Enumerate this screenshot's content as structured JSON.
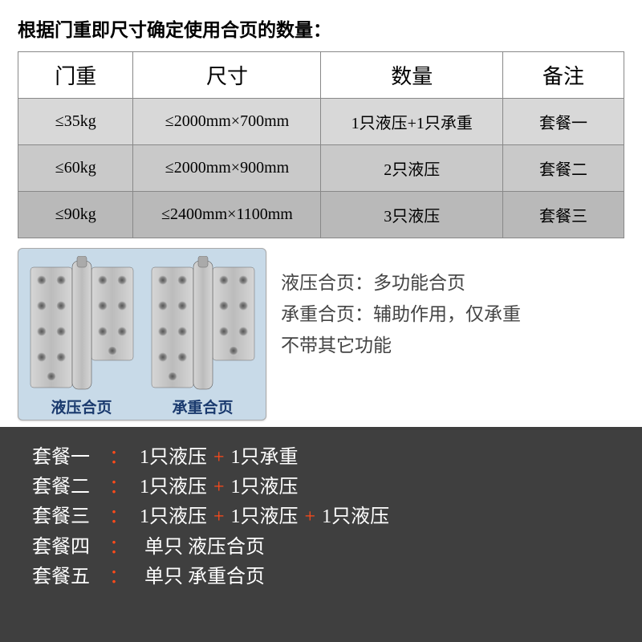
{
  "title": "根据门重即尺寸确定使用合页的数量：",
  "table": {
    "headers": [
      "门重",
      "尺寸",
      "数量",
      "备注"
    ],
    "rows": [
      {
        "weight": "≤35kg",
        "size": "≤2000mm×700mm",
        "qty": "1只液压+1只承重",
        "note": "套餐一",
        "class": "row-light"
      },
      {
        "weight": "≤60kg",
        "size": "≤2000mm×900mm",
        "qty": "2只液压",
        "note": "套餐二",
        "class": "row-mid"
      },
      {
        "weight": "≤90kg",
        "size": "≤2400mm×1100mm",
        "qty": "3只液压",
        "note": "套餐三",
        "class": "row-dark"
      }
    ]
  },
  "hinge_labels": {
    "hydraulic": "液压合页",
    "bearing": "承重合页"
  },
  "description": {
    "line1": "液压合页：多功能合页",
    "line2": "承重合页：辅助作用，仅承重",
    "line3": "不带其它功能"
  },
  "packages": [
    {
      "name": "套餐一",
      "parts": [
        "1只液压",
        "1只承重"
      ]
    },
    {
      "name": "套餐二",
      "parts": [
        "1只液压",
        "1只液压"
      ]
    },
    {
      "name": "套餐三",
      "parts": [
        "1只液压",
        "1只液压",
        "1只液压"
      ]
    },
    {
      "name": "套餐四",
      "single": "单只  液压合页"
    },
    {
      "name": "套餐五",
      "single": "单只  承重合页"
    }
  ],
  "colors": {
    "accent": "#ff4a1a",
    "dark_bg": "#3f3f3f",
    "hinge_box_bg": "#c8dae8",
    "metal_light": "#c8c8c8",
    "metal_dark": "#8a8a8a"
  }
}
